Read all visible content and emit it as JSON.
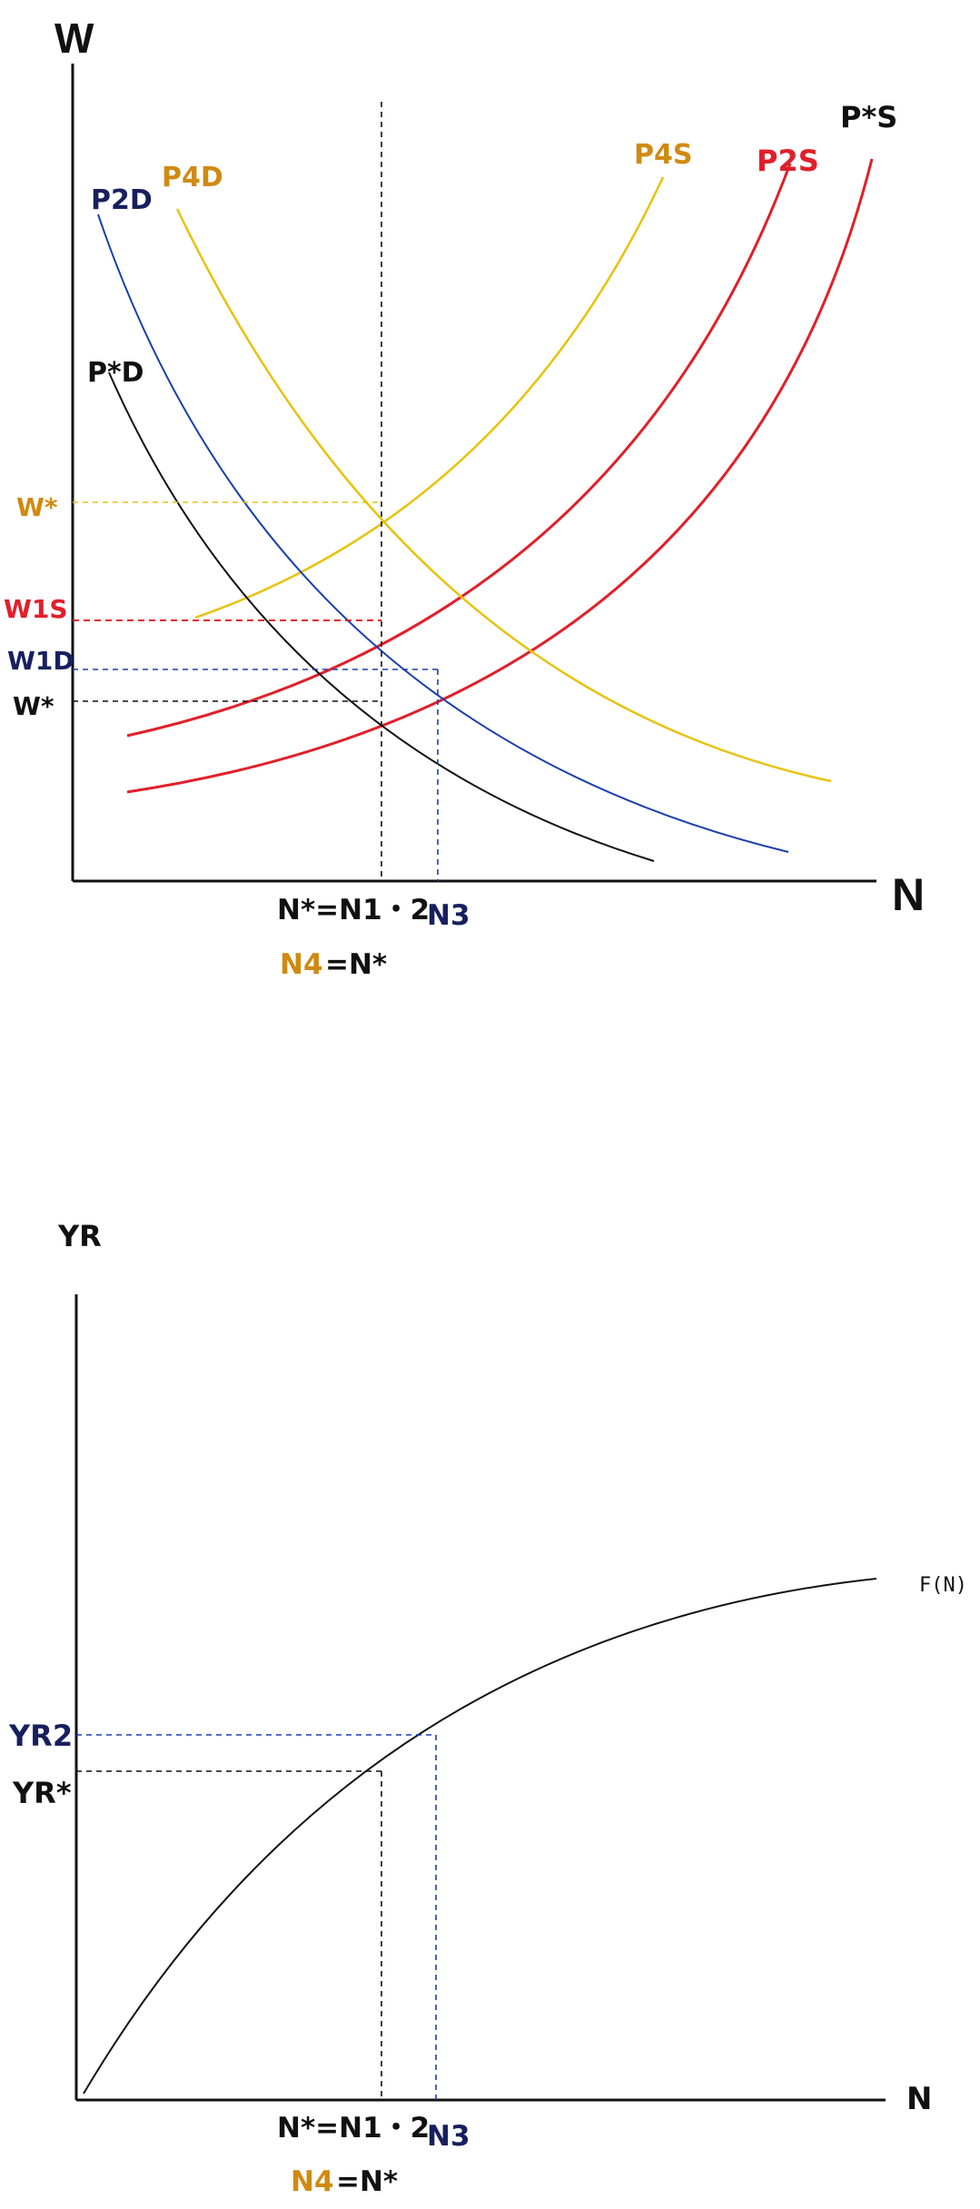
{
  "colors": {
    "black": "#111111",
    "blue": "#1a3fb0",
    "navy": "#17205e",
    "red": "#e0202a",
    "yellow": "#e8c20a",
    "orange": "#d08a10"
  },
  "top": {
    "y_axis_label": "W",
    "x_axis_label": "N",
    "curves": {
      "p2d": "P2D",
      "p4d": "P4D",
      "pstar_d": "P*D",
      "p4s": "P4S",
      "p2s": "P2S",
      "pstar_s": "P*S"
    },
    "y_ticks": {
      "w_star_high": "W*",
      "w1s": "W1S",
      "w1d": "W1D",
      "w_star": "W*"
    },
    "x_ticks": {
      "n_star": "N*=N1・2",
      "n3": "N3",
      "n4": "N4",
      "n4_eq": "=N*"
    }
  },
  "bottom": {
    "y_axis_label": "YR",
    "x_axis_label": "N",
    "curve_label": "F(N)",
    "y_ticks": {
      "yr2": "YR2",
      "yr_star": "YR*"
    },
    "x_ticks": {
      "n_star": "N*=N1・2",
      "n3": "N3",
      "n4": "N4",
      "n4_eq": "=N*"
    }
  }
}
